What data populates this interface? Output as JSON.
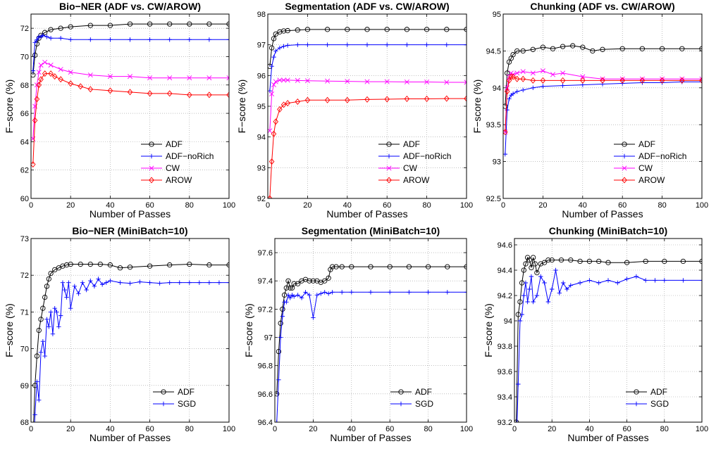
{
  "chart_data": [
    {
      "type": "line",
      "title": "Bio−NER (ADF vs. CW/AROW)",
      "xlabel": "Number of Passes",
      "ylabel": "F−score (%)",
      "xlim": [
        0,
        100
      ],
      "ylim": [
        60,
        73
      ],
      "xticks": [
        "0",
        "20",
        "40",
        "60",
        "80",
        "100"
      ],
      "yticks": [
        "60",
        "62",
        "64",
        "66",
        "68",
        "70",
        "72"
      ],
      "grid": true,
      "legend": "lower-right",
      "series": [
        {
          "name": "ADF",
          "color": "#000000",
          "marker": "circle",
          "x": [
            1,
            2,
            3,
            4,
            5,
            7,
            10,
            15,
            20,
            30,
            40,
            50,
            60,
            70,
            80,
            90,
            100
          ],
          "y": [
            68.7,
            70.1,
            70.9,
            71.3,
            71.5,
            71.7,
            71.9,
            72.0,
            72.1,
            72.2,
            72.2,
            72.3,
            72.3,
            72.3,
            72.3,
            72.3,
            72.3
          ]
        },
        {
          "name": "ADF−noRich",
          "color": "#0000ff",
          "marker": "plus",
          "x": [
            1,
            2,
            3,
            4,
            5,
            6,
            8,
            10,
            15,
            20,
            30,
            40,
            50,
            60,
            70,
            80,
            90,
            100
          ],
          "y": [
            69.0,
            71.0,
            71.2,
            71.4,
            71.4,
            71.5,
            71.4,
            71.3,
            71.3,
            71.2,
            71.2,
            71.2,
            71.2,
            71.2,
            71.2,
            71.2,
            71.2,
            71.2
          ]
        },
        {
          "name": "CW",
          "color": "#ff00ff",
          "marker": "x",
          "x": [
            1,
            2,
            3,
            4,
            5,
            7,
            10,
            15,
            20,
            30,
            40,
            50,
            60,
            70,
            80,
            90,
            100
          ],
          "y": [
            64.2,
            66.5,
            68.0,
            68.9,
            69.4,
            69.6,
            69.4,
            69.1,
            68.9,
            68.7,
            68.6,
            68.6,
            68.5,
            68.5,
            68.5,
            68.5,
            68.5
          ]
        },
        {
          "name": "AROW",
          "color": "#ff0000",
          "marker": "diamond",
          "x": [
            1,
            2,
            3,
            4,
            5,
            7,
            10,
            12,
            15,
            20,
            25,
            30,
            40,
            50,
            60,
            70,
            80,
            90,
            100
          ],
          "y": [
            62.4,
            65.5,
            67.0,
            68.0,
            68.4,
            68.8,
            68.8,
            68.6,
            68.4,
            68.1,
            67.9,
            67.7,
            67.6,
            67.5,
            67.4,
            67.4,
            67.3,
            67.3,
            67.3
          ]
        }
      ]
    },
    {
      "type": "line",
      "title": "Segmentation (ADF vs. CW/AROW)",
      "xlabel": "Number of Passes",
      "ylabel": "F−score  (%)",
      "xlim": [
        0,
        100
      ],
      "ylim": [
        92,
        98
      ],
      "xticks": [
        "0",
        "20",
        "40",
        "60",
        "80",
        "100"
      ],
      "yticks": [
        "92",
        "93",
        "94",
        "95",
        "96",
        "97",
        "98"
      ],
      "grid": true,
      "legend": "lower-right",
      "series": [
        {
          "name": "ADF",
          "color": "#000000",
          "marker": "circle",
          "x": [
            1,
            2,
            3,
            4,
            6,
            8,
            10,
            15,
            20,
            30,
            40,
            50,
            60,
            70,
            80,
            90,
            100
          ],
          "y": [
            96.3,
            96.9,
            97.2,
            97.35,
            97.42,
            97.45,
            97.46,
            97.48,
            97.5,
            97.5,
            97.5,
            97.5,
            97.5,
            97.5,
            97.5,
            97.5,
            97.5
          ]
        },
        {
          "name": "ADF−noRich",
          "color": "#0000ff",
          "marker": "plus",
          "x": [
            1,
            2,
            3,
            4,
            6,
            8,
            10,
            15,
            20,
            30,
            40,
            50,
            60,
            70,
            80,
            90,
            100
          ],
          "y": [
            95.5,
            96.3,
            96.6,
            96.8,
            96.9,
            96.95,
            96.98,
            97.0,
            97.0,
            97.0,
            97.0,
            97.0,
            97.0,
            97.0,
            97.0,
            97.0,
            97.0
          ]
        },
        {
          "name": "CW",
          "color": "#ff00ff",
          "marker": "x",
          "x": [
            1,
            2,
            3,
            4,
            6,
            8,
            10,
            15,
            20,
            30,
            40,
            50,
            60,
            70,
            80,
            90,
            100
          ],
          "y": [
            94.2,
            95.4,
            95.7,
            95.8,
            95.85,
            95.85,
            95.85,
            95.84,
            95.83,
            95.82,
            95.81,
            95.8,
            95.8,
            95.79,
            95.79,
            95.78,
            95.78
          ]
        },
        {
          "name": "AROW",
          "color": "#ff0000",
          "marker": "diamond",
          "x": [
            1,
            2,
            3,
            4,
            6,
            8,
            10,
            15,
            20,
            30,
            40,
            50,
            60,
            70,
            80,
            90,
            100
          ],
          "y": [
            92.0,
            93.2,
            94.1,
            94.5,
            94.9,
            95.05,
            95.1,
            95.15,
            95.2,
            95.2,
            95.2,
            95.22,
            95.23,
            95.24,
            95.24,
            95.25,
            95.25
          ]
        }
      ]
    },
    {
      "type": "line",
      "title": "Chunking (ADF vs. CW/AROW)",
      "xlabel": "Number of Passes",
      "ylabel": "F−score (%)",
      "xlim": [
        0,
        100
      ],
      "ylim": [
        92.5,
        95
      ],
      "xticks": [
        "0",
        "20",
        "40",
        "60",
        "80",
        "100"
      ],
      "yticks": [
        "92.5",
        "93",
        "93.5",
        "94",
        "94.5",
        "95"
      ],
      "grid": true,
      "legend": "lower-right",
      "series": [
        {
          "name": "ADF",
          "color": "#000000",
          "marker": "circle",
          "x": [
            1,
            2,
            3,
            4,
            5,
            7,
            10,
            15,
            20,
            25,
            30,
            35,
            40,
            45,
            50,
            60,
            70,
            80,
            90,
            100
          ],
          "y": [
            93.75,
            94.2,
            94.35,
            94.4,
            94.45,
            94.5,
            94.5,
            94.52,
            94.55,
            94.53,
            94.56,
            94.57,
            94.55,
            94.5,
            94.52,
            94.53,
            94.53,
            94.53,
            94.53,
            94.53
          ]
        },
        {
          "name": "ADF−noRich",
          "color": "#0000ff",
          "marker": "plus",
          "x": [
            1,
            2,
            3,
            4,
            5,
            7,
            10,
            15,
            20,
            30,
            40,
            50,
            60,
            70,
            80,
            90,
            100
          ],
          "y": [
            93.1,
            93.7,
            93.85,
            93.9,
            93.92,
            93.95,
            93.97,
            94.0,
            94.02,
            94.03,
            94.04,
            94.05,
            94.06,
            94.07,
            94.07,
            94.08,
            94.08
          ]
        },
        {
          "name": "CW",
          "color": "#ff00ff",
          "marker": "x",
          "x": [
            1,
            2,
            3,
            4,
            5,
            7,
            10,
            15,
            20,
            25,
            30,
            40,
            50,
            60,
            70,
            80,
            90,
            100
          ],
          "y": [
            93.4,
            94.0,
            94.15,
            94.2,
            94.18,
            94.2,
            94.22,
            94.2,
            94.23,
            94.18,
            94.2,
            94.15,
            94.12,
            94.12,
            94.12,
            94.12,
            94.12,
            94.12
          ]
        },
        {
          "name": "AROW",
          "color": "#ff0000",
          "marker": "diamond",
          "x": [
            1,
            2,
            3,
            4,
            5,
            7,
            10,
            15,
            20,
            30,
            40,
            50,
            60,
            70,
            80,
            90,
            100
          ],
          "y": [
            93.4,
            93.95,
            94.1,
            94.15,
            94.15,
            94.12,
            94.12,
            94.1,
            94.1,
            94.1,
            94.1,
            94.1,
            94.1,
            94.1,
            94.1,
            94.1,
            94.1
          ]
        }
      ]
    },
    {
      "type": "line",
      "title": "Bio−NER (MiniBatch=10)",
      "xlabel": "Number of Passes",
      "ylabel": "F−score (%)",
      "xlim": [
        0,
        100
      ],
      "ylim": [
        68,
        73
      ],
      "xticks": [
        "0",
        "20",
        "40",
        "60",
        "80",
        "100"
      ],
      "yticks": [
        "68",
        "69",
        "70",
        "71",
        "72",
        "73"
      ],
      "grid": true,
      "legend": "lower-right",
      "series": [
        {
          "name": "ADF",
          "color": "#000000",
          "marker": "circle",
          "x": [
            1,
            2,
            3,
            4,
            5,
            6,
            7,
            8,
            9,
            10,
            12,
            14,
            16,
            18,
            20,
            25,
            30,
            35,
            40,
            45,
            50,
            60,
            70,
            80,
            90,
            100
          ],
          "y": [
            67.5,
            69.0,
            69.8,
            70.5,
            70.8,
            71.1,
            71.4,
            71.7,
            71.9,
            72.05,
            72.15,
            72.2,
            72.25,
            72.28,
            72.3,
            72.3,
            72.3,
            72.3,
            72.28,
            72.2,
            72.22,
            72.25,
            72.28,
            72.3,
            72.28,
            72.28
          ]
        },
        {
          "name": "SGD",
          "color": "#0000ff",
          "marker": "plus",
          "x": [
            1,
            2,
            3,
            4,
            5,
            6,
            7,
            8,
            9,
            10,
            11,
            12,
            13,
            14,
            15,
            16,
            17,
            18,
            19,
            20,
            22,
            24,
            26,
            28,
            30,
            32,
            34,
            36,
            38,
            40,
            45,
            50,
            55,
            60,
            65,
            70,
            75,
            80,
            85,
            90,
            95,
            100
          ],
          "y": [
            67.0,
            68.2,
            69.1,
            68.6,
            69.9,
            70.2,
            69.8,
            70.8,
            70.6,
            71.0,
            70.4,
            71.1,
            71.0,
            70.6,
            70.9,
            71.8,
            71.6,
            71.4,
            71.8,
            71.1,
            71.7,
            71.5,
            71.8,
            71.6,
            71.85,
            71.7,
            71.9,
            71.75,
            71.8,
            71.85,
            71.8,
            71.78,
            71.82,
            71.8,
            71.78,
            71.8,
            71.8,
            71.8,
            71.8,
            71.8,
            71.8,
            71.8
          ]
        }
      ]
    },
    {
      "type": "line",
      "title": "Segmentation (MiniBatch=10)",
      "xlabel": "Number of Passes",
      "ylabel": "F−score (%)",
      "xlim": [
        0,
        100
      ],
      "ylim": [
        96.4,
        97.7
      ],
      "xticks": [
        "0",
        "20",
        "40",
        "60",
        "80",
        "100"
      ],
      "yticks": [
        "96.4",
        "96.6",
        "96.8",
        "97",
        "97.2",
        "97.4",
        "97.6"
      ],
      "grid": true,
      "legend": "lower-right",
      "series": [
        {
          "name": "ADF",
          "color": "#000000",
          "marker": "circle",
          "x": [
            1,
            2,
            3,
            4,
            5,
            6,
            7,
            8,
            9,
            10,
            12,
            14,
            16,
            18,
            20,
            22,
            24,
            26,
            28,
            29,
            30,
            32,
            35,
            40,
            50,
            60,
            70,
            80,
            90,
            100
          ],
          "y": [
            96.6,
            96.9,
            97.1,
            97.2,
            97.3,
            97.35,
            97.4,
            97.35,
            97.35,
            97.38,
            97.38,
            97.4,
            97.41,
            97.4,
            97.4,
            97.4,
            97.39,
            97.4,
            97.42,
            97.48,
            97.5,
            97.5,
            97.5,
            97.5,
            97.5,
            97.5,
            97.5,
            97.5,
            97.5,
            97.5
          ]
        },
        {
          "name": "SGD",
          "color": "#0000ff",
          "marker": "plus",
          "x": [
            1,
            2,
            3,
            4,
            5,
            6,
            7,
            8,
            9,
            10,
            12,
            14,
            16,
            18,
            20,
            22,
            24,
            26,
            28,
            30,
            35,
            40,
            50,
            60,
            70,
            80,
            90,
            100
          ],
          "y": [
            96.4,
            96.7,
            97.0,
            97.15,
            97.25,
            97.25,
            97.3,
            97.28,
            97.3,
            97.29,
            97.3,
            97.28,
            97.32,
            97.3,
            97.14,
            97.3,
            97.31,
            97.32,
            97.31,
            97.32,
            97.32,
            97.32,
            97.32,
            97.32,
            97.32,
            97.32,
            97.32,
            97.32
          ]
        }
      ]
    },
    {
      "type": "line",
      "title": "Chunking (MiniBatch=10)",
      "xlabel": "Number of Passes",
      "ylabel": "F−score (%)",
      "xlim": [
        0,
        100
      ],
      "ylim": [
        93.2,
        94.65
      ],
      "xticks": [
        "0",
        "20",
        "40",
        "60",
        "80",
        "100"
      ],
      "yticks": [
        "93.2",
        "93.4",
        "93.6",
        "93.8",
        "94",
        "94.2",
        "94.4",
        "94.6"
      ],
      "grid": true,
      "legend": "lower-right",
      "series": [
        {
          "name": "ADF",
          "color": "#000000",
          "marker": "circle",
          "x": [
            1,
            2,
            3,
            4,
            5,
            6,
            7,
            8,
            9,
            10,
            11,
            12,
            14,
            16,
            18,
            20,
            25,
            30,
            35,
            40,
            45,
            50,
            60,
            70,
            80,
            90,
            100
          ],
          "y": [
            93.2,
            94.05,
            94.15,
            94.3,
            94.4,
            94.45,
            94.5,
            94.48,
            94.42,
            94.5,
            94.45,
            94.38,
            94.45,
            94.46,
            94.48,
            94.48,
            94.48,
            94.48,
            94.47,
            94.47,
            94.47,
            94.46,
            94.46,
            94.47,
            94.47,
            94.47,
            94.47
          ]
        },
        {
          "name": "SGD",
          "color": "#0000ff",
          "marker": "plus",
          "x": [
            1,
            2,
            3,
            4,
            5,
            6,
            7,
            8,
            9,
            10,
            12,
            14,
            16,
            18,
            20,
            22,
            24,
            26,
            28,
            30,
            35,
            40,
            45,
            50,
            55,
            60,
            65,
            70,
            75,
            80,
            90,
            100
          ],
          "y": [
            93.0,
            93.5,
            94.0,
            94.05,
            94.2,
            94.3,
            94.15,
            94.25,
            94.35,
            94.15,
            94.2,
            94.35,
            94.3,
            94.15,
            94.25,
            94.4,
            94.22,
            94.3,
            94.25,
            94.28,
            94.3,
            94.32,
            94.3,
            94.32,
            94.3,
            94.33,
            94.35,
            94.32,
            94.32,
            94.32,
            94.32,
            94.32
          ]
        }
      ]
    }
  ]
}
